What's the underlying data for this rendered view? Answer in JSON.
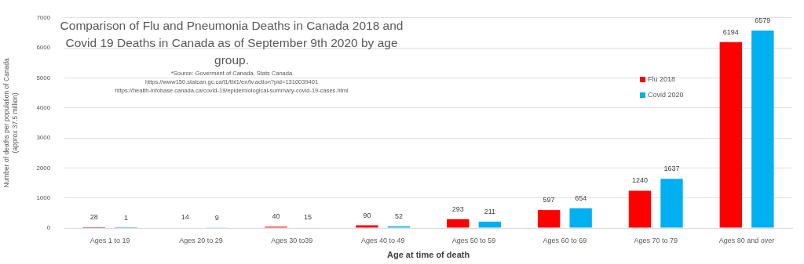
{
  "chart_data": {
    "type": "bar",
    "title": "Comparison of Flu and Pneumonia Deaths in Canada 2018 and Covid 19 Deaths in Canada as of September 9th 2020 by age group.",
    "annotations": [
      "*Source: Goverment of Canada, Stats Canada",
      "https://www150.statcan.gc.ca/t1/tbl1/en/tv.action?pid=1310039401",
      "https://health-infobase.canada.ca/covid-19/epidemiological-summary-covid-19-cases.html"
    ],
    "xlabel": "Age at time of death",
    "ylabel": "Number of deaths per population of Canada\n(approx 37.5 million)",
    "categories": [
      "Ages 1 to 19",
      "Ages 20 to 29",
      "Ages 30 to39",
      "Ages 40 to 49",
      "Ages 50 to 59",
      "Ages 60 to 69",
      "Ages 70 to 79",
      "Ages 80 and over"
    ],
    "series": [
      {
        "name": "Flu 2018",
        "color": "#ff0000",
        "values": [
          28,
          14,
          40,
          90,
          293,
          597,
          1240,
          6194
        ]
      },
      {
        "name": "Covid 2020",
        "color": "#00b0f0",
        "values": [
          1,
          9,
          15,
          52,
          211,
          654,
          1637,
          6579
        ]
      }
    ],
    "ylim": [
      0,
      7000
    ],
    "yticks": [
      0,
      1000,
      2000,
      3000,
      4000,
      5000,
      6000,
      7000
    ],
    "grid": "y",
    "legend": "right",
    "data_labels": true
  }
}
